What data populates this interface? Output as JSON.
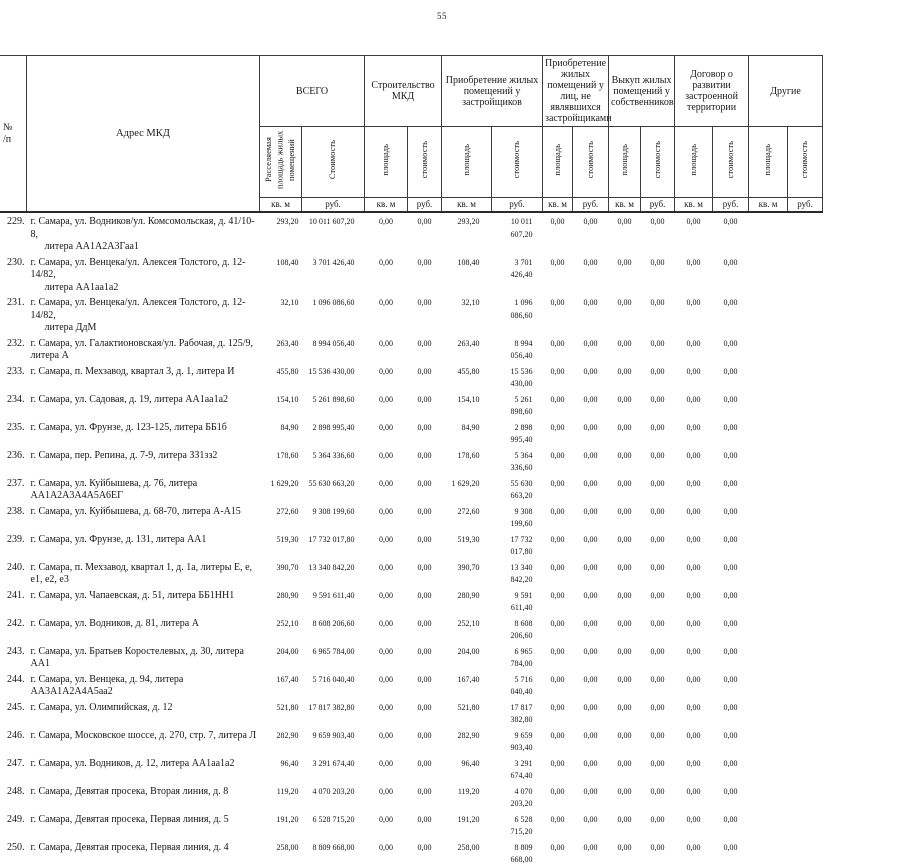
{
  "page": {
    "number": "55"
  },
  "table": {
    "headers": {
      "num_line1": "№",
      "num_line2": "/п",
      "address": "Адрес МКД",
      "groups": [
        {
          "label": "ВСЕГО",
          "sub": [
            "Расселяемая площадь жилых помещений",
            "Стоимость"
          ]
        },
        {
          "label": "Строительство МКД",
          "sub": [
            "площадь",
            "стоимость"
          ]
        },
        {
          "label": "Приобретение жилых помещений у застройщиков",
          "sub": [
            "площадь",
            "стоимость"
          ]
        },
        {
          "label": "Приобретение жилых помещений у лиц, не являвшихся застройщиками",
          "sub": [
            "площадь",
            "стоимость"
          ]
        },
        {
          "label": "Выкуп жилых помещений у собственников",
          "sub": [
            "площадь",
            "стоимость"
          ]
        },
        {
          "label": "Договор о развитии застроенной территории",
          "sub": [
            "площадь",
            "стоимость"
          ]
        },
        {
          "label": "Другие",
          "sub": [
            "площадь",
            "стоимость"
          ]
        }
      ],
      "unit_area": "кв. м",
      "unit_cost": "руб."
    },
    "rows": [
      {
        "num": "229.",
        "address_lines": [
          "г. Самара, ул. Водников/ул. Комсомольская, д. 41/10-8,",
          "литера АА1А2А3Гаа1"
        ],
        "values": [
          "293,20",
          "10 011 607,20",
          "0,00",
          "0,00",
          "293,20",
          "10 011 607,20",
          "0,00",
          "0,00",
          "0,00",
          "0,00",
          "0,00",
          "0,00",
          "",
          ""
        ]
      },
      {
        "num": "230.",
        "address_lines": [
          "г. Самара, ул. Венцека/ул. Алексея Толстого, д. 12-14/82,",
          "литера АА1аа1а2"
        ],
        "values": [
          "108,40",
          "3 701 426,40",
          "0,00",
          "0,00",
          "108,40",
          "3 701 426,40",
          "0,00",
          "0,00",
          "0,00",
          "0,00",
          "0,00",
          "0,00",
          "",
          ""
        ]
      },
      {
        "num": "231.",
        "address_lines": [
          "г. Самара, ул. Венцека/ул. Алексея Толстого, д. 12-14/82,",
          "литера ДдМ"
        ],
        "values": [
          "32,10",
          "1 096 086,60",
          "0,00",
          "0,00",
          "32,10",
          "1 096 086,60",
          "0,00",
          "0,00",
          "0,00",
          "0,00",
          "0,00",
          "0,00",
          "",
          ""
        ]
      },
      {
        "num": "232.",
        "address_lines": [
          "г. Самара, ул. Галактионовская/ул. Рабочая, д. 125/9, литера А"
        ],
        "values": [
          "263,40",
          "8 994 056,40",
          "0,00",
          "0,00",
          "263,40",
          "8 994 056,40",
          "0,00",
          "0,00",
          "0,00",
          "0,00",
          "0,00",
          "0,00",
          "",
          ""
        ]
      },
      {
        "num": "233.",
        "address_lines": [
          "г. Самара, п. Мехзавод, квартал 3, д. 1, литера И"
        ],
        "values": [
          "455,80",
          "15 536 430,00",
          "0,00",
          "0,00",
          "455,80",
          "15 536 430,00",
          "0,00",
          "0,00",
          "0,00",
          "0,00",
          "0,00",
          "0,00",
          "",
          ""
        ]
      },
      {
        "num": "234.",
        "address_lines": [
          "г. Самара, ул. Садовая, д. 19, литера АА1аа1а2"
        ],
        "values": [
          "154,10",
          "5 261 898,60",
          "0,00",
          "0,00",
          "154,10",
          "5 261 898,60",
          "0,00",
          "0,00",
          "0,00",
          "0,00",
          "0,00",
          "0,00",
          "",
          ""
        ]
      },
      {
        "num": "235.",
        "address_lines": [
          "г. Самара, ул. Фрунзе, д. 123-125, литера ББ1б"
        ],
        "values": [
          "84,90",
          "2 898 995,40",
          "0,00",
          "0,00",
          "84,90",
          "2 898 995,40",
          "0,00",
          "0,00",
          "0,00",
          "0,00",
          "0,00",
          "0,00",
          "",
          ""
        ]
      },
      {
        "num": "236.",
        "address_lines": [
          "г. Самара, пер. Репина, д. 7-9, литера ЗЗ1зз2"
        ],
        "values": [
          "178,60",
          "5 364 336,60",
          "0,00",
          "0,00",
          "178,60",
          "5 364 336,60",
          "0,00",
          "0,00",
          "0,00",
          "0,00",
          "0,00",
          "0,00",
          "",
          ""
        ]
      },
      {
        "num": "237.",
        "address_lines": [
          "г. Самара, ул. Куйбышева, д. 76, литера АА1А2А3А4А5А6ЕГ"
        ],
        "values": [
          "1 629,20",
          "55 630 663,20",
          "0,00",
          "0,00",
          "1 629,20",
          "55 630 663,20",
          "0,00",
          "0,00",
          "0,00",
          "0,00",
          "0,00",
          "0,00",
          "",
          ""
        ]
      },
      {
        "num": "238.",
        "address_lines": [
          "г. Самара, ул. Куйбышева, д. 68-70, литера А-А15"
        ],
        "values": [
          "272,60",
          "9 308 199,60",
          "0,00",
          "0,00",
          "272,60",
          "9 308 199,60",
          "0,00",
          "0,00",
          "0,00",
          "0,00",
          "0,00",
          "0,00",
          "",
          ""
        ]
      },
      {
        "num": "239.",
        "address_lines": [
          "г. Самара, ул. Фрунзе, д. 131, литера АА1"
        ],
        "values": [
          "519,30",
          "17 732 017,80",
          "0,00",
          "0,00",
          "519,30",
          "17 732 017,80",
          "0,00",
          "0,00",
          "0,00",
          "0,00",
          "0,00",
          "0,00",
          "",
          ""
        ]
      },
      {
        "num": "240.",
        "address_lines": [
          "г. Самара, п. Мехзавод, квартал 1, д. 1а, литеры Е, е, е1, е2, е3"
        ],
        "values": [
          "390,70",
          "13 340 842,20",
          "0,00",
          "0,00",
          "390,70",
          "13 340 842,20",
          "0,00",
          "0,00",
          "0,00",
          "0,00",
          "0,00",
          "0,00",
          "",
          ""
        ]
      },
      {
        "num": "241.",
        "address_lines": [
          "г. Самара, ул. Чапаевская, д. 51, литера ББ1НН1"
        ],
        "values": [
          "280,90",
          "9 591 611,40",
          "0,00",
          "0,00",
          "280,90",
          "9 591 611,40",
          "0,00",
          "0,00",
          "0,00",
          "0,00",
          "0,00",
          "0,00",
          "",
          ""
        ]
      },
      {
        "num": "242.",
        "address_lines": [
          "г. Самара, ул. Водников, д. 81, литера А"
        ],
        "values": [
          "252,10",
          "8 608 206,60",
          "0,00",
          "0,00",
          "252,10",
          "8 608 206,60",
          "0,00",
          "0,00",
          "0,00",
          "0,00",
          "0,00",
          "0,00",
          "",
          ""
        ]
      },
      {
        "num": "243.",
        "address_lines": [
          "г. Самара, ул. Братьев Коростелевых, д. 30, литера АА1"
        ],
        "values": [
          "204,00",
          "6 965 784,00",
          "0,00",
          "0,00",
          "204,00",
          "6 965 784,00",
          "0,00",
          "0,00",
          "0,00",
          "0,00",
          "0,00",
          "0,00",
          "",
          ""
        ]
      },
      {
        "num": "244.",
        "address_lines": [
          "г. Самара, ул. Венцека, д. 94, литера АА3А1А2А4А5аа2"
        ],
        "values": [
          "167,40",
          "5 716 040,40",
          "0,00",
          "0,00",
          "167,40",
          "5 716 040,40",
          "0,00",
          "0,00",
          "0,00",
          "0,00",
          "0,00",
          "0,00",
          "",
          ""
        ]
      },
      {
        "num": "245.",
        "address_lines": [
          "г. Самара, ул. Олимпийская, д. 12"
        ],
        "values": [
          "521,80",
          "17 817 382,80",
          "0,00",
          "0,00",
          "521,80",
          "17 817 382,80",
          "0,00",
          "0,00",
          "0,00",
          "0,00",
          "0,00",
          "0,00",
          "",
          ""
        ]
      },
      {
        "num": "246.",
        "address_lines": [
          "г. Самара, Московское шоссе, д. 270, стр. 7, литера Л"
        ],
        "values": [
          "282,90",
          "9 659 903,40",
          "0,00",
          "0,00",
          "282,90",
          "9 659 903,40",
          "0,00",
          "0,00",
          "0,00",
          "0,00",
          "0,00",
          "0,00",
          "",
          ""
        ]
      },
      {
        "num": "247.",
        "address_lines": [
          "г. Самара, ул. Водников, д. 12, литера АА1аа1а2"
        ],
        "values": [
          "96,40",
          "3 291 674,40",
          "0,00",
          "0,00",
          "96,40",
          "3 291 674,40",
          "0,00",
          "0,00",
          "0,00",
          "0,00",
          "0,00",
          "0,00",
          "",
          ""
        ]
      },
      {
        "num": "248.",
        "address_lines": [
          "г. Самара,  Девятая просека, Вторая линия, д. 8"
        ],
        "values": [
          "119,20",
          "4 070 203,20",
          "0,00",
          "0,00",
          "119,20",
          "4 070 203,20",
          "0,00",
          "0,00",
          "0,00",
          "0,00",
          "0,00",
          "0,00",
          "",
          ""
        ]
      },
      {
        "num": "249.",
        "address_lines": [
          "г. Самара,  Девятая просека, Первая линия, д. 5"
        ],
        "values": [
          "191,20",
          "6 528 715,20",
          "0,00",
          "0,00",
          "191,20",
          "6 528 715,20",
          "0,00",
          "0,00",
          "0,00",
          "0,00",
          "0,00",
          "0,00",
          "",
          ""
        ]
      },
      {
        "num": "250.",
        "address_lines": [
          "г. Самара,  Девятая просека, Первая линия, д. 4"
        ],
        "values": [
          "258,00",
          "8 809 668,00",
          "0,00",
          "0,00",
          "258,00",
          "8 809 668,00",
          "0,00",
          "0,00",
          "0,00",
          "0,00",
          "0,00",
          "0,00",
          "",
          ""
        ]
      }
    ]
  }
}
